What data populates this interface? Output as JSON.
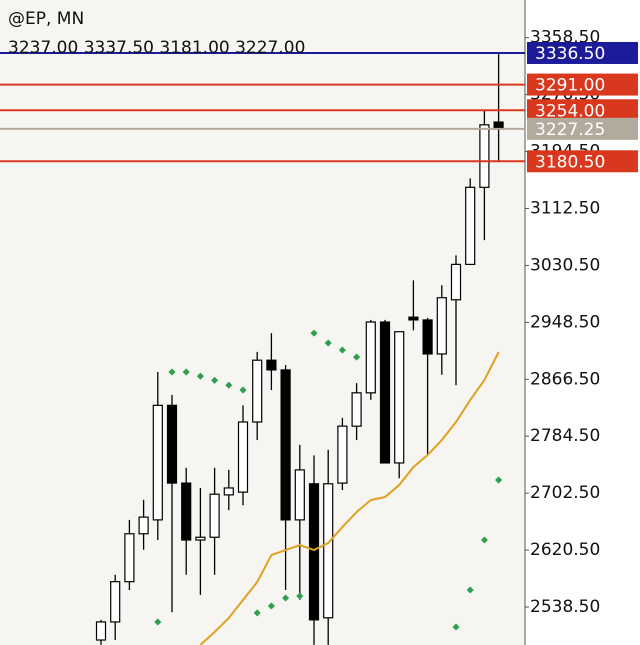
{
  "chart_data": {
    "type": "candlestick",
    "title": "@EP, MN",
    "subtitle": "3237.00 3337.50 3181.00 3227.00",
    "ylim": [
      2483.8,
      3412.8
    ],
    "yticks": [
      {
        "value": 2538.5,
        "label": "2538.50"
      },
      {
        "value": 2620.5,
        "label": "2620.50"
      },
      {
        "value": 2702.5,
        "label": "2702.50"
      },
      {
        "value": 2784.5,
        "label": "2784.50"
      },
      {
        "value": 2866.5,
        "label": "2866.50"
      },
      {
        "value": 2948.5,
        "label": "2948.50"
      },
      {
        "value": 3030.5,
        "label": "3030.50"
      },
      {
        "value": 3112.5,
        "label": "3112.50"
      },
      {
        "value": 3194.5,
        "label": "3194.50"
      },
      {
        "value": 3276.5,
        "label": "3276.50"
      },
      {
        "value": 3358.5,
        "label": "3358.50"
      }
    ],
    "candles": {
      "up_color": "#ffffff",
      "down_color": "#000000",
      "open": [
        2491,
        2517,
        2575,
        2644,
        2664,
        2829,
        2717,
        2635,
        2639,
        2700,
        2704,
        2805,
        2894,
        2880,
        2664,
        2716,
        2523,
        2717,
        2799,
        2847,
        2949,
        2746,
        2956,
        2952,
        2903,
        2981,
        3032,
        3143,
        3237
      ],
      "high": [
        2520,
        2585,
        2664,
        2693,
        2877,
        2844,
        2739,
        2710,
        2739,
        2736,
        2829,
        2906,
        2933,
        2887,
        2772,
        2757,
        2765,
        2811,
        2861,
        2952,
        2952,
        2935,
        3009,
        2955,
        3002,
        3045,
        3156,
        3254,
        3337.5
      ],
      "low": [
        2484,
        2491,
        2563,
        2621,
        2635,
        2531,
        2585,
        2556,
        2585,
        2678,
        2685,
        2779,
        2851,
        2563,
        2549,
        2484,
        2484,
        2707,
        2779,
        2837,
        2746,
        2724,
        2937,
        2757,
        2873,
        2858,
        3031,
        3067,
        3181
      ],
      "close": [
        2517,
        2575,
        2644,
        2668,
        2829,
        2717,
        2635,
        2639,
        2701,
        2710,
        2805,
        2894,
        2880,
        2664,
        2736,
        2520,
        2716,
        2799,
        2847,
        2949,
        2746,
        2935,
        2952,
        2903,
        2984,
        3032,
        3143,
        3233,
        3227
      ]
    },
    "moving_average": {
      "color": "#e0a020",
      "values": [
        null,
        null,
        null,
        null,
        null,
        null,
        null,
        2484,
        2502.5,
        2522.7,
        2548.6,
        2574.5,
        2613.4,
        2620.6,
        2627.8,
        2620.6,
        2630.7,
        2653.7,
        2675.3,
        2692.6,
        2696.9,
        2714.2,
        2740,
        2757.4,
        2779,
        2805,
        2836.6,
        2865.4,
        2905.7
      ]
    },
    "sar": {
      "color": "#2e9e4f",
      "values": [
        null,
        null,
        null,
        null,
        2517,
        2877,
        2877,
        2871,
        2865,
        2858,
        2851,
        2530,
        2540,
        2551.5,
        2554.3,
        2933,
        2918.7,
        2908.6,
        2898.5,
        null,
        null,
        null,
        null,
        null,
        null,
        2509.7,
        2563,
        2635,
        2721.4
      ]
    },
    "price_lines": [
      {
        "value": 3336.5,
        "label": "3336.50",
        "color": "#1c1c9a"
      },
      {
        "value": 3291,
        "label": "3291.00",
        "color": "#d9381e"
      },
      {
        "value": 3254,
        "label": "3254.00",
        "color": "#d9381e"
      },
      {
        "value": 3227.25,
        "label": "3227.25",
        "color": "#b3aa9e"
      },
      {
        "value": 3180.5,
        "label": "3180.50",
        "color": "#d9381e"
      }
    ]
  }
}
